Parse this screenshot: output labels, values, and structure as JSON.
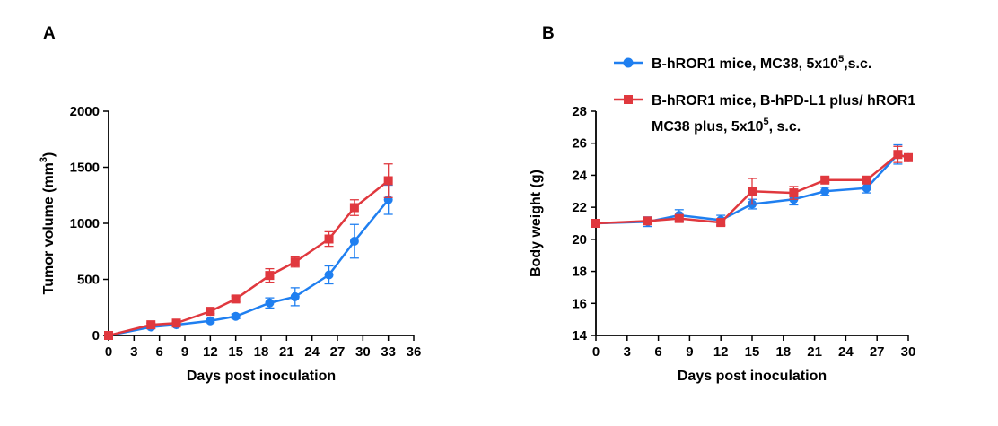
{
  "colors": {
    "blue": "#1f7ff0",
    "red": "#e0383e"
  },
  "legend": {
    "blue_line1_pre": "B-hROR1 mice, MC38, 5x10",
    "blue_line1_sup": "5",
    "blue_line1_post": ",s.c.",
    "red_line1": "B-hROR1 mice, B-hPD-L1 plus/ hROR1",
    "red_line2_pre": "MC38 plus, 5x10",
    "red_line2_sup": "5",
    "red_line2_post": ", s.c."
  },
  "chart_data": [
    {
      "panel": "A",
      "type": "line",
      "xlabel": "Days post inoculation",
      "ylabel_pre": "Tumor volume (mm",
      "ylabel_sup": "3",
      "ylabel_post": ")",
      "xlim": [
        0,
        36
      ],
      "ylim": [
        0,
        2000
      ],
      "xticks": [
        0,
        3,
        6,
        9,
        12,
        15,
        18,
        21,
        24,
        27,
        30,
        33,
        36
      ],
      "yticks": [
        0,
        500,
        1000,
        1500,
        2000
      ],
      "grid": false,
      "series": [
        {
          "color": "blue",
          "marker": "circle",
          "x": [
            0,
            5,
            8,
            12,
            15,
            19,
            22,
            26,
            29,
            33
          ],
          "y": [
            0,
            75,
            95,
            130,
            170,
            290,
            345,
            540,
            840,
            1210
          ],
          "err": [
            5,
            15,
            15,
            15,
            20,
            45,
            80,
            80,
            150,
            130
          ]
        },
        {
          "color": "red",
          "marker": "square",
          "x": [
            0,
            5,
            8,
            12,
            15,
            19,
            22,
            26,
            29,
            33
          ],
          "y": [
            0,
            95,
            110,
            215,
            325,
            535,
            655,
            860,
            1140,
            1380
          ],
          "err": [
            5,
            15,
            15,
            20,
            25,
            60,
            45,
            65,
            70,
            150
          ]
        }
      ]
    },
    {
      "panel": "B",
      "type": "line",
      "xlabel": "Days post inoculation",
      "ylabel": "Body weight (g)",
      "xlim": [
        0,
        30
      ],
      "ylim": [
        14,
        28
      ],
      "xticks": [
        0,
        3,
        6,
        9,
        12,
        15,
        18,
        21,
        24,
        27,
        30
      ],
      "yticks": [
        14,
        16,
        18,
        20,
        22,
        24,
        26,
        28
      ],
      "grid": false,
      "series": [
        {
          "color": "blue",
          "marker": "circle",
          "x": [
            0,
            5,
            8,
            12,
            15,
            19,
            22,
            26,
            29,
            30
          ],
          "y": [
            21.0,
            21.1,
            21.5,
            21.2,
            22.2,
            22.5,
            23.0,
            23.2,
            25.3,
            25.1
          ],
          "err": [
            0.1,
            0.3,
            0.35,
            0.3,
            0.3,
            0.35,
            0.25,
            0.3,
            0.6,
            0.2
          ]
        },
        {
          "color": "red",
          "marker": "square",
          "x": [
            0,
            5,
            8,
            12,
            15,
            19,
            22,
            26,
            29,
            30
          ],
          "y": [
            21.0,
            21.15,
            21.3,
            21.05,
            23.0,
            22.9,
            23.7,
            23.7,
            25.3,
            25.1
          ],
          "err": [
            0.1,
            0.2,
            0.2,
            0.2,
            0.8,
            0.4,
            0.15,
            0.15,
            0.5,
            0.2
          ]
        }
      ]
    }
  ]
}
